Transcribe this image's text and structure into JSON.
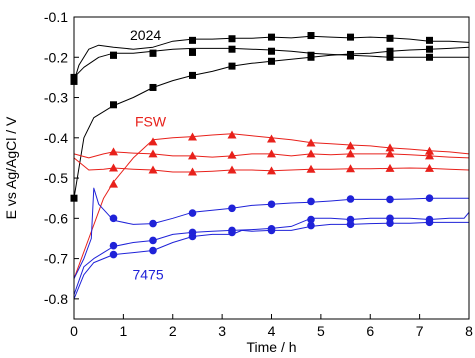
{
  "chart_data": {
    "type": "line",
    "title": "",
    "xlabel": "Time / h",
    "ylabel": "E vs Ag/AgCl / V",
    "xlim": [
      0,
      8
    ],
    "ylim": [
      -0.85,
      -0.1
    ],
    "xticks": [
      0,
      1,
      2,
      3,
      4,
      5,
      6,
      7,
      8
    ],
    "xtick_labels": [
      "0",
      "1",
      "2",
      "3",
      "4",
      "5",
      "6",
      "7",
      "8"
    ],
    "yticks": [
      -0.8,
      -0.7,
      -0.6,
      -0.5,
      -0.4,
      -0.3,
      -0.2,
      -0.1
    ],
    "ytick_labels": [
      "-0.8",
      "-0.7",
      "-0.6",
      "-0.5",
      "-0.4",
      "-0.3",
      "-0.2",
      "-0.1"
    ],
    "grid": false,
    "annotations": [
      {
        "text": "2024",
        "x": 1.45,
        "y": -0.145,
        "color": "#000000"
      },
      {
        "text": "FSW",
        "x": 1.55,
        "y": -0.36,
        "color": "#e8211b"
      },
      {
        "text": "7475",
        "x": 1.5,
        "y": -0.74,
        "color": "#1f22d8"
      }
    ],
    "series": [
      {
        "group": "2024",
        "color": "#000000",
        "marker": "square",
        "x": [
          0,
          0.1,
          0.3,
          0.5,
          0.8,
          1.2,
          1.6,
          2.0,
          2.4,
          2.8,
          3.2,
          3.6,
          4.0,
          4.4,
          4.8,
          5.2,
          5.6,
          6.0,
          6.4,
          6.8,
          7.2,
          7.6,
          8.0
        ],
        "y": [
          -0.26,
          -0.22,
          -0.18,
          -0.17,
          -0.175,
          -0.18,
          -0.175,
          -0.16,
          -0.155,
          -0.155,
          -0.153,
          -0.153,
          -0.15,
          -0.152,
          -0.148,
          -0.15,
          -0.152,
          -0.15,
          -0.152,
          -0.155,
          -0.16,
          -0.16,
          -0.163
        ],
        "marker_x": [
          0,
          0.8,
          1.6,
          2.4,
          3.2,
          4.0,
          4.8,
          5.6,
          6.4,
          7.2
        ],
        "marker_y": [
          -0.26,
          -0.195,
          -0.19,
          -0.158,
          -0.154,
          -0.15,
          -0.146,
          -0.15,
          -0.153,
          -0.158
        ]
      },
      {
        "group": "2024",
        "color": "#000000",
        "marker": "square",
        "x": [
          0,
          0.2,
          0.5,
          0.8,
          1.2,
          1.6,
          2.0,
          2.4,
          2.8,
          3.2,
          3.6,
          4.0,
          4.4,
          4.8,
          5.2,
          5.6,
          6.0,
          6.4,
          6.8,
          7.2,
          7.6,
          8.0
        ],
        "y": [
          -0.25,
          -0.225,
          -0.2,
          -0.19,
          -0.19,
          -0.185,
          -0.18,
          -0.178,
          -0.178,
          -0.178,
          -0.18,
          -0.182,
          -0.185,
          -0.19,
          -0.193,
          -0.195,
          -0.197,
          -0.2,
          -0.2,
          -0.2,
          -0.2,
          -0.2
        ],
        "marker_x": [
          0,
          0.8,
          1.6,
          2.4,
          3.2,
          4.0,
          4.8,
          5.6,
          6.4,
          7.2
        ],
        "marker_y": [
          -0.25,
          -0.195,
          -0.19,
          -0.188,
          -0.18,
          -0.185,
          -0.195,
          -0.197,
          -0.2,
          -0.2
        ]
      },
      {
        "group": "2024",
        "color": "#000000",
        "marker": "square",
        "x": [
          0,
          0.2,
          0.4,
          0.8,
          1.2,
          1.6,
          2.0,
          2.4,
          2.8,
          3.2,
          3.6,
          4.0,
          4.4,
          4.8,
          5.2,
          5.6,
          6.0,
          6.4,
          6.8,
          7.2,
          7.6,
          8.0
        ],
        "y": [
          -0.55,
          -0.4,
          -0.35,
          -0.32,
          -0.3,
          -0.275,
          -0.258,
          -0.245,
          -0.235,
          -0.222,
          -0.215,
          -0.21,
          -0.205,
          -0.2,
          -0.195,
          -0.192,
          -0.19,
          -0.185,
          -0.182,
          -0.18,
          -0.178,
          -0.175
        ],
        "marker_x": [
          0,
          0.8,
          1.6,
          2.4,
          3.2,
          4.0,
          4.8,
          5.6,
          6.4,
          7.2
        ],
        "marker_y": [
          -0.55,
          -0.318,
          -0.275,
          -0.245,
          -0.222,
          -0.21,
          -0.2,
          -0.193,
          -0.185,
          -0.18
        ]
      },
      {
        "group": "FSW",
        "color": "#e8211b",
        "marker": "triangle",
        "x": [
          0,
          0.3,
          0.6,
          0.8,
          1.2,
          1.6,
          2.0,
          2.4,
          2.8,
          3.2,
          3.6,
          4.0,
          4.4,
          4.8,
          5.2,
          5.6,
          6.0,
          6.4,
          6.8,
          7.2,
          7.6,
          8.0
        ],
        "y": [
          -0.75,
          -0.65,
          -0.55,
          -0.51,
          -0.45,
          -0.405,
          -0.4,
          -0.397,
          -0.393,
          -0.39,
          -0.395,
          -0.4,
          -0.405,
          -0.412,
          -0.415,
          -0.418,
          -0.42,
          -0.425,
          -0.428,
          -0.432,
          -0.435,
          -0.44
        ],
        "marker_x": [
          0.8,
          1.6,
          2.4,
          3.2,
          4.0,
          4.8,
          5.6,
          6.4,
          7.2
        ],
        "marker_y": [
          -0.515,
          -0.41,
          -0.398,
          -0.393,
          -0.403,
          -0.413,
          -0.42,
          -0.425,
          -0.433
        ]
      },
      {
        "group": "FSW",
        "color": "#e8211b",
        "marker": "triangle",
        "x": [
          0,
          0.3,
          0.6,
          0.8,
          1.2,
          1.6,
          2.0,
          2.4,
          2.8,
          3.2,
          3.6,
          4.0,
          4.4,
          4.8,
          5.2,
          5.6,
          6.0,
          6.4,
          6.8,
          7.2,
          7.6,
          8.0
        ],
        "y": [
          -0.44,
          -0.45,
          -0.44,
          -0.435,
          -0.438,
          -0.44,
          -0.445,
          -0.445,
          -0.448,
          -0.445,
          -0.44,
          -0.44,
          -0.445,
          -0.44,
          -0.442,
          -0.44,
          -0.44,
          -0.44,
          -0.442,
          -0.445,
          -0.448,
          -0.45
        ],
        "marker_x": [
          0.8,
          1.6,
          2.4,
          3.2,
          4.0,
          4.8,
          5.6,
          6.4,
          7.2
        ],
        "marker_y": [
          -0.435,
          -0.44,
          -0.445,
          -0.443,
          -0.44,
          -0.44,
          -0.44,
          -0.44,
          -0.445
        ]
      },
      {
        "group": "FSW",
        "color": "#e8211b",
        "marker": "triangle",
        "x": [
          0,
          0.3,
          0.6,
          0.8,
          1.2,
          1.6,
          2.0,
          2.4,
          2.8,
          3.2,
          3.6,
          4.0,
          4.4,
          4.8,
          5.2,
          5.6,
          6.0,
          6.4,
          6.8,
          7.2,
          7.6,
          8.0
        ],
        "y": [
          -0.45,
          -0.48,
          -0.478,
          -0.475,
          -0.478,
          -0.48,
          -0.485,
          -0.485,
          -0.483,
          -0.48,
          -0.48,
          -0.482,
          -0.48,
          -0.478,
          -0.478,
          -0.477,
          -0.477,
          -0.476,
          -0.475,
          -0.476,
          -0.478,
          -0.48
        ],
        "marker_x": [
          0.8,
          1.6,
          2.4,
          3.2,
          4.0,
          4.8,
          5.6,
          6.4,
          7.2
        ],
        "marker_y": [
          -0.475,
          -0.48,
          -0.485,
          -0.48,
          -0.482,
          -0.478,
          -0.477,
          -0.476,
          -0.476
        ]
      },
      {
        "group": "7475",
        "color": "#1f22d8",
        "marker": "circle",
        "x": [
          0,
          0.2,
          0.35,
          0.4,
          0.5,
          0.8,
          1.2,
          1.6,
          2.0,
          2.4,
          2.8,
          3.2,
          3.6,
          4.0,
          4.4,
          4.8,
          5.2,
          5.6,
          6.0,
          6.4,
          6.8,
          7.2,
          7.6,
          8.0
        ],
        "y": [
          -0.75,
          -0.7,
          -0.65,
          -0.525,
          -0.565,
          -0.605,
          -0.615,
          -0.613,
          -0.6,
          -0.585,
          -0.58,
          -0.575,
          -0.568,
          -0.565,
          -0.562,
          -0.56,
          -0.557,
          -0.553,
          -0.553,
          -0.553,
          -0.552,
          -0.55,
          -0.55,
          -0.55
        ],
        "marker_x": [
          0.8,
          1.6,
          2.4,
          3.2,
          4.0,
          4.8,
          5.6,
          6.4,
          7.2
        ],
        "marker_y": [
          -0.6,
          -0.613,
          -0.587,
          -0.575,
          -0.565,
          -0.558,
          -0.552,
          -0.553,
          -0.55
        ]
      },
      {
        "group": "7475",
        "color": "#1f22d8",
        "marker": "circle",
        "x": [
          0,
          0.2,
          0.4,
          0.6,
          0.8,
          1.2,
          1.6,
          2.0,
          2.4,
          2.8,
          3.2,
          3.6,
          4.0,
          4.4,
          4.8,
          5.2,
          5.6,
          6.0,
          6.4,
          6.8,
          7.2,
          7.6,
          7.9,
          8.0
        ],
        "y": [
          -0.79,
          -0.72,
          -0.7,
          -0.685,
          -0.67,
          -0.66,
          -0.655,
          -0.64,
          -0.635,
          -0.632,
          -0.63,
          -0.628,
          -0.625,
          -0.62,
          -0.6,
          -0.6,
          -0.603,
          -0.6,
          -0.6,
          -0.6,
          -0.603,
          -0.6,
          -0.6,
          -0.585
        ],
        "marker_x": [
          0.8,
          1.6,
          2.4,
          3.2,
          4.0,
          4.8,
          5.6,
          6.4,
          7.2
        ],
        "marker_y": [
          -0.668,
          -0.655,
          -0.635,
          -0.63,
          -0.626,
          -0.603,
          -0.603,
          -0.6,
          -0.603
        ]
      },
      {
        "group": "7475",
        "color": "#1f22d8",
        "marker": "circle",
        "x": [
          0,
          0.2,
          0.4,
          0.6,
          0.8,
          1.2,
          1.6,
          2.0,
          2.4,
          2.8,
          3.2,
          3.4,
          3.6,
          4.0,
          4.4,
          4.8,
          5.2,
          5.6,
          6.0,
          6.4,
          6.8,
          7.2,
          7.6,
          8.0
        ],
        "y": [
          -0.8,
          -0.74,
          -0.71,
          -0.7,
          -0.69,
          -0.685,
          -0.68,
          -0.66,
          -0.645,
          -0.64,
          -0.64,
          -0.63,
          -0.632,
          -0.63,
          -0.63,
          -0.62,
          -0.615,
          -0.615,
          -0.613,
          -0.612,
          -0.612,
          -0.61,
          -0.61,
          -0.61
        ],
        "marker_x": [
          0.8,
          1.6,
          2.4,
          3.2,
          4.0,
          4.8,
          5.6,
          6.4,
          7.2
        ],
        "marker_y": [
          -0.69,
          -0.68,
          -0.645,
          -0.635,
          -0.63,
          -0.618,
          -0.615,
          -0.612,
          -0.61
        ]
      }
    ]
  }
}
